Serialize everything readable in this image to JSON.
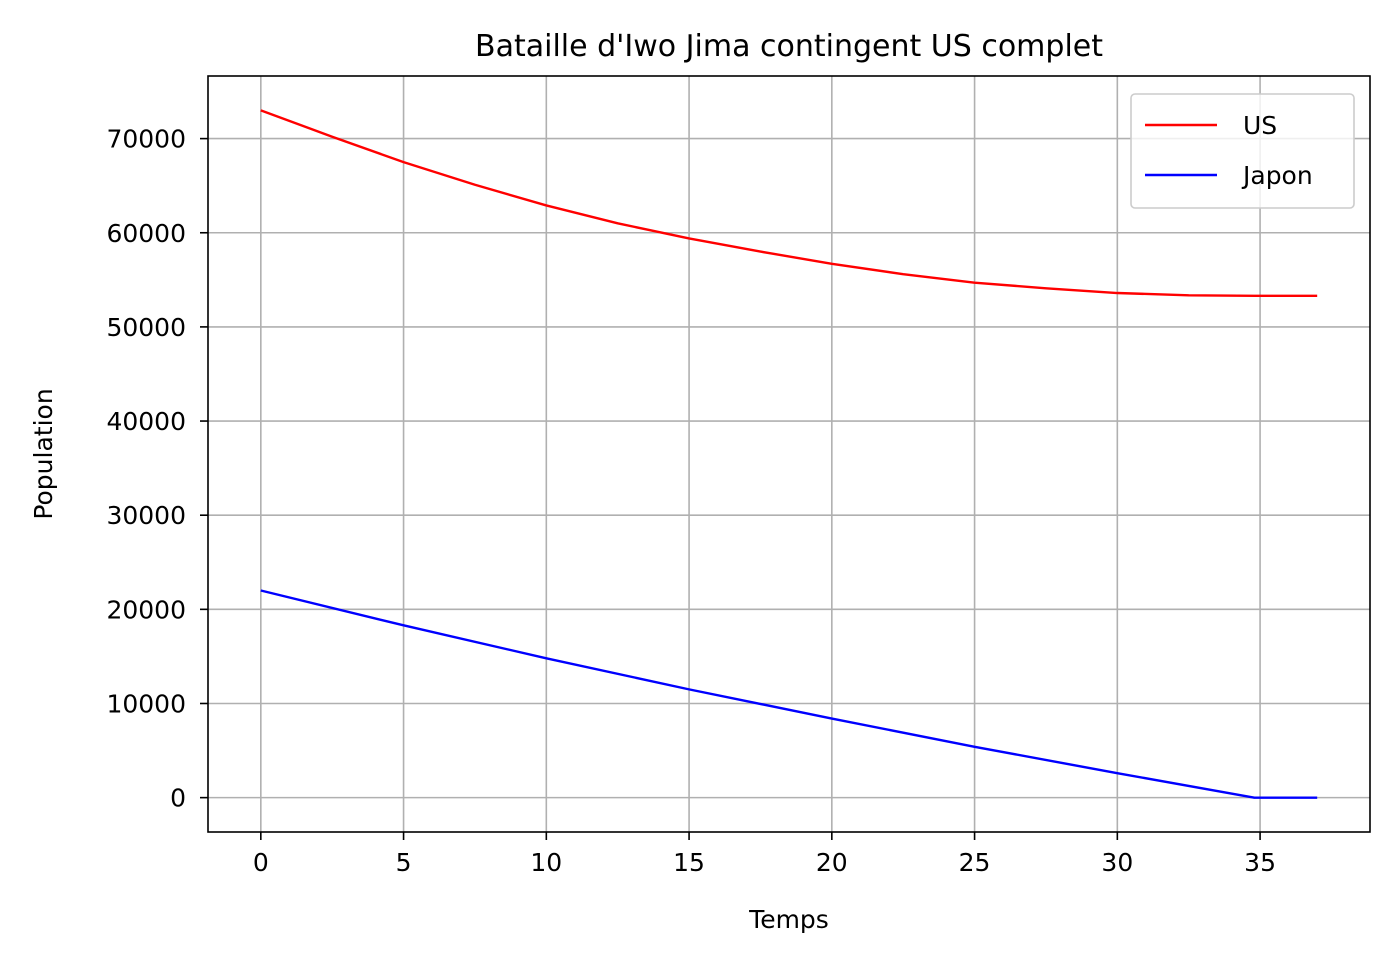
{
  "chart_data": {
    "type": "line",
    "title": "Bataille d'Iwo Jima contingent US complet",
    "xlabel": "Temps",
    "ylabel": "Population",
    "xlim": [
      -1.85,
      38.85
    ],
    "ylim": [
      -3650,
      76650
    ],
    "xticks": [
      0,
      5,
      10,
      15,
      20,
      25,
      30,
      35
    ],
    "yticks": [
      0,
      10000,
      20000,
      30000,
      40000,
      50000,
      60000,
      70000
    ],
    "grid": true,
    "legend_position": "top-right",
    "series": [
      {
        "name": "US",
        "color": "#ff0000",
        "x": [
          0,
          2.5,
          5,
          7.5,
          10,
          12.5,
          15,
          17.5,
          20,
          22.5,
          25,
          27.5,
          30,
          32.5,
          34.8,
          37
        ],
        "y": [
          73000,
          70200,
          67500,
          65100,
          62900,
          61000,
          59400,
          58000,
          56700,
          55600,
          54700,
          54100,
          53600,
          53350,
          53300,
          53300
        ]
      },
      {
        "name": "Japon",
        "color": "#0000ff",
        "x": [
          0,
          5,
          10,
          15,
          20,
          25,
          30,
          34.8,
          37
        ],
        "y": [
          22000,
          18300,
          14800,
          11500,
          8400,
          5400,
          2600,
          0,
          0
        ]
      }
    ]
  }
}
